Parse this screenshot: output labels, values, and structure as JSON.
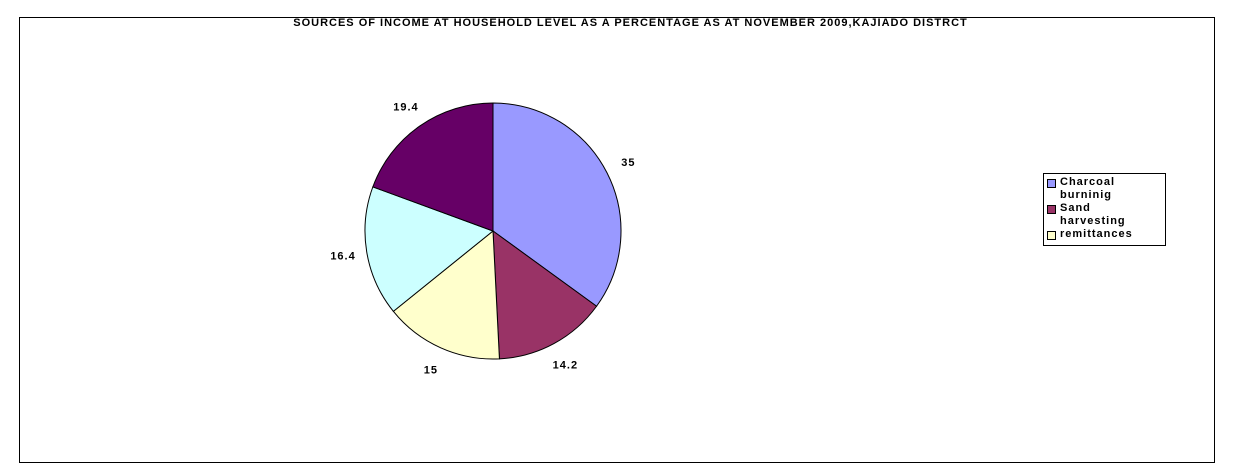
{
  "chart_data": {
    "type": "pie",
    "title": "SOURCES OF INCOME AT HOUSEHOLD LEVEL AS A PERCENTAGE AS AT NOVEMBER  2009,KAJIADO DISTRCT",
    "slices": [
      {
        "label": "Charcoal burninig",
        "value": 35,
        "value_label": "35",
        "color": "#9999FF"
      },
      {
        "label": "Sand harvesting",
        "value": 14.2,
        "value_label": "14.2",
        "color": "#993366"
      },
      {
        "label": "remittances",
        "value": 15,
        "value_label": "15",
        "color": "#FFFFCC"
      },
      {
        "label": "",
        "value": 16.4,
        "value_label": "16.4",
        "color": "#CCFFFF"
      },
      {
        "label": "",
        "value": 19.4,
        "value_label": "19.4",
        "color": "#660066"
      }
    ],
    "legend": {
      "position": "right",
      "entries": [
        {
          "label": "Charcoal burninig",
          "color": "#9999FF"
        },
        {
          "label": "Sand harvesting",
          "color": "#993366"
        },
        {
          "label": "remittances",
          "color": "#FFFFCC"
        }
      ]
    },
    "start": "12 o'clock",
    "direction": "clockwise"
  }
}
